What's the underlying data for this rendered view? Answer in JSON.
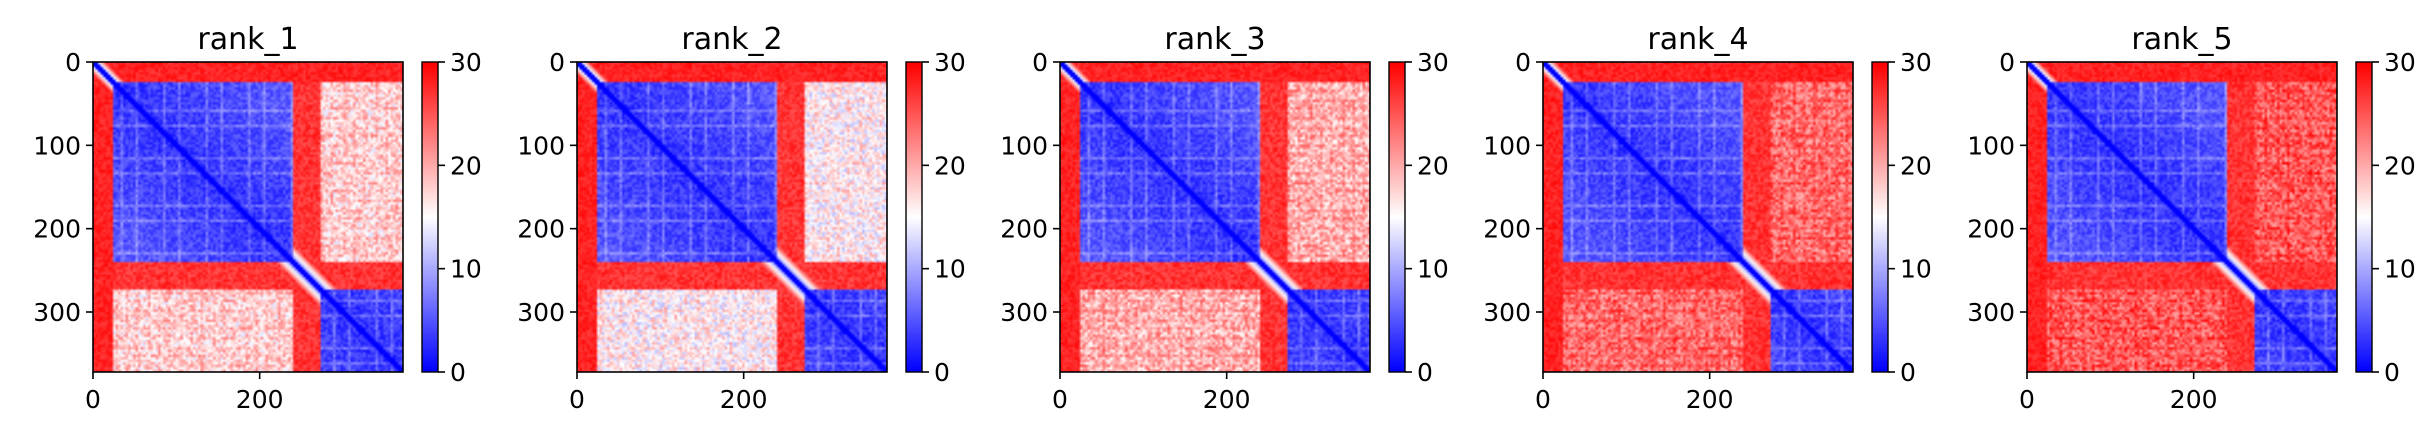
{
  "chart_data": {
    "type": "heatmap",
    "colormap": "bwr",
    "colormap_stops": [
      "#0000ff",
      "#ffffff",
      "#ff0000"
    ],
    "colorbar": {
      "range": [
        0,
        30
      ],
      "ticks": [
        "0",
        "10",
        "20",
        "30"
      ]
    },
    "axes": {
      "x_range": [
        0,
        372
      ],
      "y_range": [
        0,
        372
      ],
      "y_inverted": true,
      "x_ticks": [
        "0",
        "200"
      ],
      "y_ticks": [
        "0",
        "100",
        "200",
        "300"
      ]
    },
    "structure": {
      "n_residues": 372,
      "domain_a": [
        25,
        240
      ],
      "linker": [
        240,
        272
      ],
      "domain_b": [
        272,
        372
      ],
      "n_terminal_tail": [
        0,
        25
      ]
    },
    "panels": [
      {
        "title": "rank_1",
        "inter_domain_distance": 17
      },
      {
        "title": "rank_2",
        "inter_domain_distance": 15
      },
      {
        "title": "rank_3",
        "inter_domain_distance": 19
      },
      {
        "title": "rank_4",
        "inter_domain_distance": 23
      },
      {
        "title": "rank_5",
        "inter_domain_distance": 24
      }
    ]
  }
}
